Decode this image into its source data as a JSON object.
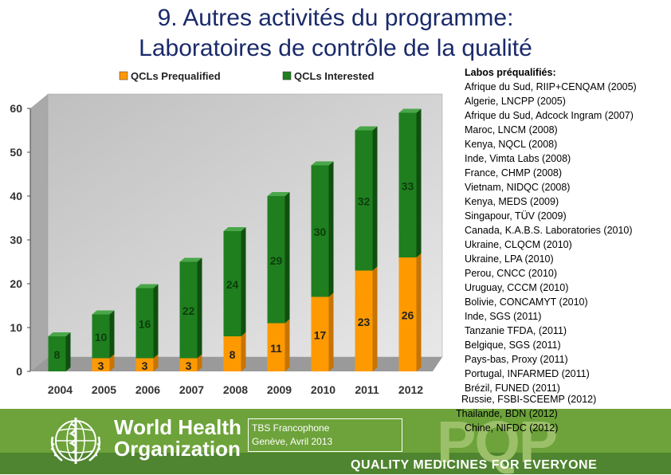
{
  "title": {
    "line1": "9. Autres activités du programme:",
    "line2": "Laboratoires de contrôle de la qualité"
  },
  "chart_data": {
    "type": "bar",
    "stacked": true,
    "categories": [
      "2004",
      "2005",
      "2006",
      "2007",
      "2008",
      "2009",
      "2010",
      "2011",
      "2012"
    ],
    "series": [
      {
        "name": "QCLs Prequalified",
        "color": "#ff9900",
        "values": [
          0,
          3,
          3,
          3,
          8,
          11,
          17,
          23,
          26
        ]
      },
      {
        "name": "QCLs Interested",
        "color": "#1f7f1f",
        "values": [
          8,
          10,
          16,
          22,
          24,
          29,
          30,
          32,
          33
        ]
      }
    ],
    "bar_labels": {
      "prequalified": [
        "",
        "3",
        "3",
        "3",
        "8",
        "11",
        "17",
        "23",
        "26"
      ],
      "interested": [
        "8",
        "10",
        "16",
        "22",
        "24",
        "29",
        "30",
        "32",
        "33"
      ]
    },
    "yticks": [
      "0",
      "10",
      "20",
      "30",
      "40",
      "50",
      "60"
    ],
    "ylim": [
      0,
      60
    ],
    "legend_position": "top"
  },
  "labs": {
    "header": "Labos préqualifiés:",
    "items": [
      "Afrique du Sud, RIIP+CENQAM (2005)",
      "Algerie, LNCPP (2005)",
      "Afrique du Sud, Adcock Ingram (2007)",
      "Maroc, LNCM (2008)",
      "Kenya, NQCL (2008)",
      "Inde, Vimta Labs (2008)",
      "France, CHMP (2008)",
      "Vietnam, NIDQC (2008)",
      "Kenya, MEDS (2009)",
      "Singapour, TÜV (2009)",
      "Canada, K.A.B.S. Laboratories (2010)",
      "Ukraine, CLQCM (2010)",
      "Ukraine, LPA (2010)",
      "Perou, CNCC (2010)",
      "Uruguay, CCCM (2010)",
      "Bolivie, CONCAMYT (2010)",
      "Inde, SGS (2011)",
      "Tanzanie TFDA, (2011)",
      "Belgique, SGS (2011)",
      "Pays-bas, Proxy (2011)",
      "Portugal, INFARMED (2011)",
      "Brézil, FUNED (2011)"
    ],
    "overflow": [
      "Russie, FSBI-SCEEMP (2012)",
      "Thailande, BDN (2012)",
      "Chine, NIFDC (2012)"
    ]
  },
  "footer": {
    "who_line1": "World Health",
    "who_line2": "Organization",
    "event_line1": "TBS Francophone",
    "event_line2": "Genève, Avril 2013",
    "pqp": "PQP",
    "tagline": "QUALITY MEDICINES FOR EVERYONE"
  }
}
